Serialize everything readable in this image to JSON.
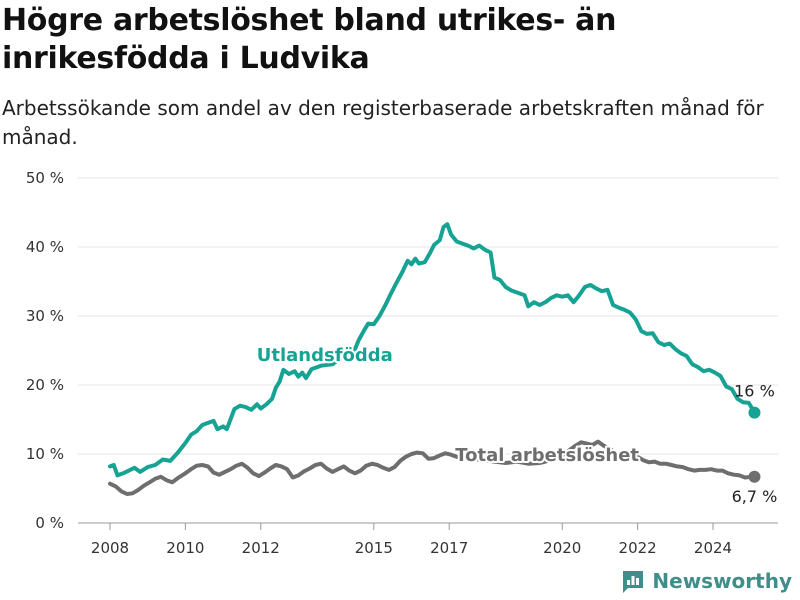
{
  "title": "Högre arbetslöshet bland utrikes- än inrikesfödda i Ludvika",
  "subtitle": "Arbetssökande som andel av den registerbaserade arbetskraften månad för månad.",
  "brand": {
    "name": "Newsworthy",
    "icon": "newsworthy-logo-icon"
  },
  "colors": {
    "foreign": "#16a394",
    "total": "#6e6e6e",
    "grid": "#e6e6e6"
  },
  "chart_data": {
    "type": "line",
    "title": "Högre arbetslöshet bland utrikes- än inrikesfödda i Ludvika",
    "subtitle": "Arbetssökande som andel av den registerbaserade arbetskraften månad för månad.",
    "xlabel": "",
    "ylabel": "",
    "xlim": [
      2007.5,
      2025.75
    ],
    "ylim": [
      0,
      50
    ],
    "y_ticks": [
      {
        "value": 0,
        "label": "0 %"
      },
      {
        "value": 10,
        "label": "10 %"
      },
      {
        "value": 20,
        "label": "20 %"
      },
      {
        "value": 30,
        "label": "30 %"
      },
      {
        "value": 40,
        "label": "40 %"
      },
      {
        "value": 50,
        "label": "50 %"
      }
    ],
    "x_ticks": [
      {
        "value": 2008,
        "label": "2008"
      },
      {
        "value": 2010,
        "label": "2010"
      },
      {
        "value": 2012,
        "label": "2012"
      },
      {
        "value": 2015,
        "label": "2015"
      },
      {
        "value": 2017,
        "label": "2017"
      },
      {
        "value": 2020,
        "label": "2020"
      },
      {
        "value": 2022,
        "label": "2022"
      },
      {
        "value": 2024,
        "label": "2024"
      }
    ],
    "grid": true,
    "legend": "inline labels",
    "series": [
      {
        "name": "Utlandsfödda",
        "color": "#16a394",
        "end_label": "16 %",
        "points": [
          [
            2008.0,
            8.2
          ],
          [
            2008.1,
            8.4
          ],
          [
            2008.2,
            6.9
          ],
          [
            2008.35,
            7.2
          ],
          [
            2008.5,
            7.6
          ],
          [
            2008.65,
            8.0
          ],
          [
            2008.8,
            7.4
          ],
          [
            2009.0,
            8.1
          ],
          [
            2009.2,
            8.4
          ],
          [
            2009.4,
            9.2
          ],
          [
            2009.6,
            9.0
          ],
          [
            2009.8,
            10.2
          ],
          [
            2010.0,
            11.6
          ],
          [
            2010.15,
            12.8
          ],
          [
            2010.3,
            13.3
          ],
          [
            2010.45,
            14.2
          ],
          [
            2010.6,
            14.5
          ],
          [
            2010.75,
            14.8
          ],
          [
            2010.85,
            13.6
          ],
          [
            2011.0,
            14.0
          ],
          [
            2011.1,
            13.6
          ],
          [
            2011.3,
            16.5
          ],
          [
            2011.45,
            17.0
          ],
          [
            2011.6,
            16.8
          ],
          [
            2011.75,
            16.4
          ],
          [
            2011.9,
            17.2
          ],
          [
            2012.0,
            16.6
          ],
          [
            2012.15,
            17.2
          ],
          [
            2012.3,
            18.0
          ],
          [
            2012.4,
            19.6
          ],
          [
            2012.5,
            20.5
          ],
          [
            2012.6,
            22.2
          ],
          [
            2012.75,
            21.6
          ],
          [
            2012.9,
            22.0
          ],
          [
            2013.0,
            21.2
          ],
          [
            2013.1,
            21.8
          ],
          [
            2013.2,
            21.0
          ],
          [
            2013.35,
            22.3
          ],
          [
            2013.6,
            22.8
          ],
          [
            2013.9,
            23.0
          ],
          [
            2014.1,
            23.8
          ],
          [
            2014.3,
            24.2
          ],
          [
            2014.5,
            25.2
          ],
          [
            2014.6,
            26.5
          ],
          [
            2014.75,
            28.0
          ],
          [
            2014.85,
            28.9
          ],
          [
            2015.0,
            28.8
          ],
          [
            2015.15,
            30.0
          ],
          [
            2015.3,
            31.5
          ],
          [
            2015.45,
            33.2
          ],
          [
            2015.6,
            34.8
          ],
          [
            2015.75,
            36.3
          ],
          [
            2015.9,
            38.0
          ],
          [
            2016.0,
            37.5
          ],
          [
            2016.1,
            38.3
          ],
          [
            2016.2,
            37.6
          ],
          [
            2016.35,
            37.8
          ],
          [
            2016.5,
            39.2
          ],
          [
            2016.6,
            40.3
          ],
          [
            2016.75,
            41.0
          ],
          [
            2016.85,
            42.9
          ],
          [
            2016.95,
            43.3
          ],
          [
            2017.05,
            41.8
          ],
          [
            2017.2,
            40.8
          ],
          [
            2017.35,
            40.5
          ],
          [
            2017.5,
            40.2
          ],
          [
            2017.65,
            39.8
          ],
          [
            2017.8,
            40.2
          ],
          [
            2017.95,
            39.6
          ],
          [
            2018.1,
            39.2
          ],
          [
            2018.2,
            35.6
          ],
          [
            2018.35,
            35.2
          ],
          [
            2018.5,
            34.2
          ],
          [
            2018.65,
            33.7
          ],
          [
            2018.8,
            33.4
          ],
          [
            2019.0,
            33.0
          ],
          [
            2019.1,
            31.4
          ],
          [
            2019.25,
            32.0
          ],
          [
            2019.4,
            31.6
          ],
          [
            2019.55,
            32.0
          ],
          [
            2019.7,
            32.6
          ],
          [
            2019.85,
            33.0
          ],
          [
            2020.0,
            32.8
          ],
          [
            2020.15,
            33.0
          ],
          [
            2020.3,
            32.0
          ],
          [
            2020.45,
            33.0
          ],
          [
            2020.6,
            34.2
          ],
          [
            2020.75,
            34.5
          ],
          [
            2020.9,
            34.0
          ],
          [
            2021.05,
            33.6
          ],
          [
            2021.2,
            33.8
          ],
          [
            2021.35,
            31.6
          ],
          [
            2021.5,
            31.2
          ],
          [
            2021.65,
            30.9
          ],
          [
            2021.8,
            30.5
          ],
          [
            2021.95,
            29.5
          ],
          [
            2022.1,
            27.8
          ],
          [
            2022.25,
            27.4
          ],
          [
            2022.4,
            27.5
          ],
          [
            2022.55,
            26.2
          ],
          [
            2022.7,
            25.8
          ],
          [
            2022.85,
            26.0
          ],
          [
            2023.0,
            25.2
          ],
          [
            2023.15,
            24.6
          ],
          [
            2023.3,
            24.2
          ],
          [
            2023.45,
            23.0
          ],
          [
            2023.6,
            22.6
          ],
          [
            2023.75,
            22.0
          ],
          [
            2023.9,
            22.2
          ],
          [
            2024.05,
            21.8
          ],
          [
            2024.2,
            21.3
          ],
          [
            2024.35,
            19.8
          ],
          [
            2024.5,
            19.4
          ],
          [
            2024.65,
            18.0
          ],
          [
            2024.8,
            17.5
          ],
          [
            2024.95,
            17.4
          ],
          [
            2025.1,
            16.0
          ]
        ]
      },
      {
        "name": "Total arbetslöshet",
        "color": "#6e6e6e",
        "end_label": "6,7 %",
        "points": [
          [
            2008.0,
            5.7
          ],
          [
            2008.15,
            5.3
          ],
          [
            2008.3,
            4.6
          ],
          [
            2008.45,
            4.2
          ],
          [
            2008.6,
            4.3
          ],
          [
            2008.75,
            4.8
          ],
          [
            2008.9,
            5.4
          ],
          [
            2009.05,
            5.9
          ],
          [
            2009.2,
            6.4
          ],
          [
            2009.35,
            6.7
          ],
          [
            2009.5,
            6.2
          ],
          [
            2009.65,
            5.9
          ],
          [
            2009.8,
            6.5
          ],
          [
            2010.0,
            7.2
          ],
          [
            2010.15,
            7.8
          ],
          [
            2010.3,
            8.3
          ],
          [
            2010.45,
            8.4
          ],
          [
            2010.6,
            8.2
          ],
          [
            2010.75,
            7.3
          ],
          [
            2010.9,
            7.0
          ],
          [
            2011.05,
            7.4
          ],
          [
            2011.2,
            7.8
          ],
          [
            2011.35,
            8.3
          ],
          [
            2011.5,
            8.6
          ],
          [
            2011.65,
            8.0
          ],
          [
            2011.8,
            7.2
          ],
          [
            2011.95,
            6.8
          ],
          [
            2012.1,
            7.3
          ],
          [
            2012.25,
            7.9
          ],
          [
            2012.4,
            8.4
          ],
          [
            2012.55,
            8.2
          ],
          [
            2012.7,
            7.8
          ],
          [
            2012.85,
            6.6
          ],
          [
            2013.0,
            6.9
          ],
          [
            2013.15,
            7.5
          ],
          [
            2013.3,
            7.9
          ],
          [
            2013.45,
            8.4
          ],
          [
            2013.6,
            8.6
          ],
          [
            2013.75,
            7.9
          ],
          [
            2013.9,
            7.4
          ],
          [
            2014.05,
            7.8
          ],
          [
            2014.2,
            8.2
          ],
          [
            2014.35,
            7.6
          ],
          [
            2014.5,
            7.2
          ],
          [
            2014.65,
            7.6
          ],
          [
            2014.8,
            8.3
          ],
          [
            2014.95,
            8.6
          ],
          [
            2015.1,
            8.4
          ],
          [
            2015.25,
            8.0
          ],
          [
            2015.4,
            7.7
          ],
          [
            2015.55,
            8.1
          ],
          [
            2015.7,
            9.0
          ],
          [
            2015.85,
            9.6
          ],
          [
            2016.0,
            10.0
          ],
          [
            2016.15,
            10.2
          ],
          [
            2016.3,
            10.1
          ],
          [
            2016.45,
            9.3
          ],
          [
            2016.6,
            9.4
          ],
          [
            2016.75,
            9.8
          ],
          [
            2016.9,
            10.1
          ],
          [
            2017.05,
            9.9
          ],
          [
            2017.2,
            9.6
          ],
          [
            2017.35,
            9.4
          ],
          [
            2017.6,
            9.3
          ],
          [
            2017.9,
            9.1
          ],
          [
            2018.2,
            8.9
          ],
          [
            2018.5,
            8.7
          ],
          [
            2018.8,
            8.9
          ],
          [
            2019.1,
            8.6
          ],
          [
            2019.4,
            8.7
          ],
          [
            2019.7,
            9.1
          ],
          [
            2020.0,
            9.8
          ],
          [
            2020.2,
            10.6
          ],
          [
            2020.35,
            11.2
          ],
          [
            2020.5,
            11.7
          ],
          [
            2020.65,
            11.5
          ],
          [
            2020.8,
            11.3
          ],
          [
            2020.95,
            11.8
          ],
          [
            2021.1,
            11.2
          ],
          [
            2021.25,
            10.8
          ],
          [
            2021.4,
            10.2
          ],
          [
            2021.55,
            9.8
          ],
          [
            2021.7,
            9.6
          ],
          [
            2021.85,
            9.5
          ],
          [
            2022.0,
            9.6
          ],
          [
            2022.15,
            9.1
          ],
          [
            2022.3,
            8.8
          ],
          [
            2022.45,
            8.9
          ],
          [
            2022.6,
            8.6
          ],
          [
            2022.75,
            8.6
          ],
          [
            2022.9,
            8.4
          ],
          [
            2023.05,
            8.2
          ],
          [
            2023.2,
            8.1
          ],
          [
            2023.35,
            7.8
          ],
          [
            2023.5,
            7.6
          ],
          [
            2023.65,
            7.7
          ],
          [
            2023.8,
            7.7
          ],
          [
            2023.95,
            7.8
          ],
          [
            2024.1,
            7.6
          ],
          [
            2024.25,
            7.6
          ],
          [
            2024.4,
            7.2
          ],
          [
            2024.55,
            7.0
          ],
          [
            2024.7,
            6.9
          ],
          [
            2024.85,
            6.6
          ],
          [
            2025.0,
            6.7
          ],
          [
            2025.1,
            6.7
          ]
        ]
      }
    ],
    "annotations": [
      {
        "text": "Utlandsfödda",
        "series": "Utlandsfödda",
        "x": 2013.7,
        "y": 23.5,
        "color": "#16a394"
      },
      {
        "text": "Total arbetslöshet",
        "series": "Total arbetslöshet",
        "x": 2019.6,
        "y": 9.0,
        "color": "#6e6e6e"
      }
    ]
  }
}
